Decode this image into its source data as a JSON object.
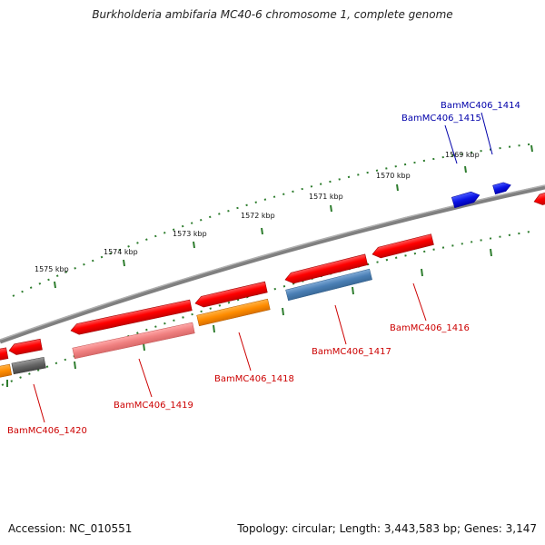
{
  "title": "Burkholderia ambifaria MC40-6 chromosome 1, complete genome",
  "footer": {
    "accession": "Accession: NC_010551",
    "topology": "Topology: circular; Length: 3,443,583 bp; Genes: 3,147"
  },
  "scale_labels": [
    "1569 kbp",
    "1570 kbp",
    "1571 kbp",
    "1572 kbp",
    "1573 kbp",
    "1574 kbp",
    "1575 kbp"
  ],
  "genes": [
    {
      "id": "BamMC406_1414",
      "strand": "+",
      "color": "#0000ee"
    },
    {
      "id": "BamMC406_1415",
      "strand": "+",
      "color": "#0000ee"
    },
    {
      "id": "BamMC406_1416",
      "strand": "-",
      "color": "#ff1010"
    },
    {
      "id": "BamMC406_1417",
      "strand": "-",
      "color": "#ff1010"
    },
    {
      "id": "BamMC406_1418",
      "strand": "-",
      "color": "#ff1010"
    },
    {
      "id": "BamMC406_1419",
      "strand": "-",
      "color": "#ff1010"
    },
    {
      "id": "BamMC406_1420",
      "strand": "-",
      "color": "#ff1010"
    }
  ],
  "colors": {
    "backbone": "#808080",
    "tick": "#2e7d2e",
    "forward_label": "#0000aa",
    "reverse_label": "#cc0000",
    "cds_red": "#ff1a1a",
    "cds_blue": "#0a14e6",
    "cog_orange": "#ff8c00",
    "cog_steelblue": "#4a7fb5",
    "cog_pink": "#f08080",
    "cog_gray": "#666666"
  }
}
